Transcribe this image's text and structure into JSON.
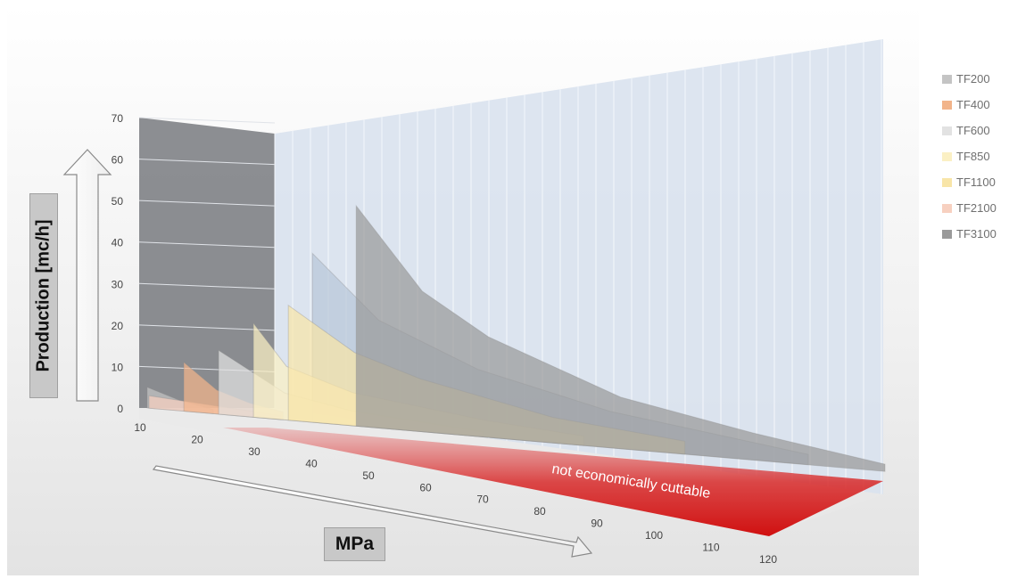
{
  "chart_data": {
    "type": "area",
    "xlabel": "MPa",
    "ylabel": "Production [mc/h]",
    "x_ticks": [
      10,
      20,
      30,
      40,
      50,
      60,
      70,
      80,
      90,
      100,
      110,
      120
    ],
    "y_ticks": [
      0,
      10,
      20,
      30,
      40,
      50,
      60,
      70
    ],
    "xlim": [
      10,
      120
    ],
    "ylim": [
      0,
      70
    ],
    "annotation": "not economically cuttable",
    "legend_position": "right",
    "series": [
      {
        "name": "TF200",
        "color": "#c4c4c4",
        "x": [
          10,
          15,
          20
        ],
        "values": [
          5,
          2.5,
          1
        ]
      },
      {
        "name": "TF400",
        "color": "#f2b48a",
        "x": [
          15,
          20,
          25,
          30
        ],
        "values": [
          12,
          6,
          3.5,
          2
        ]
      },
      {
        "name": "TF600",
        "color": "#e2e2e2",
        "x": [
          20,
          30,
          40,
          60
        ],
        "values": [
          16,
          7,
          4,
          1.5
        ]
      },
      {
        "name": "TF850",
        "color": "#fbf0c4",
        "x": [
          25,
          30,
          40,
          60,
          75
        ],
        "values": [
          24,
          14,
          9,
          5,
          3
        ]
      },
      {
        "name": "TF1100",
        "color": "#f8e5a8",
        "x": [
          30,
          40,
          50,
          70,
          90
        ],
        "values": [
          30,
          20,
          15,
          8,
          4.5
        ]
      },
      {
        "name": "TF2100",
        "color": "#f7d0c0",
        "x": [
          10,
          20,
          30
        ],
        "values": [
          3,
          2,
          1
        ]
      },
      {
        "name": "TF3100",
        "color": "#9a9a9a",
        "x": [
          40,
          50,
          60,
          80,
          100,
          120
        ],
        "values": [
          60,
          40,
          30,
          17,
          10,
          3
        ]
      }
    ],
    "extra_band": {
      "x": [
        35,
        45,
        60,
        80,
        100,
        110
      ],
      "values": [
        45,
        30,
        20,
        12,
        7,
        4
      ],
      "color": "#b9c6d8"
    }
  }
}
